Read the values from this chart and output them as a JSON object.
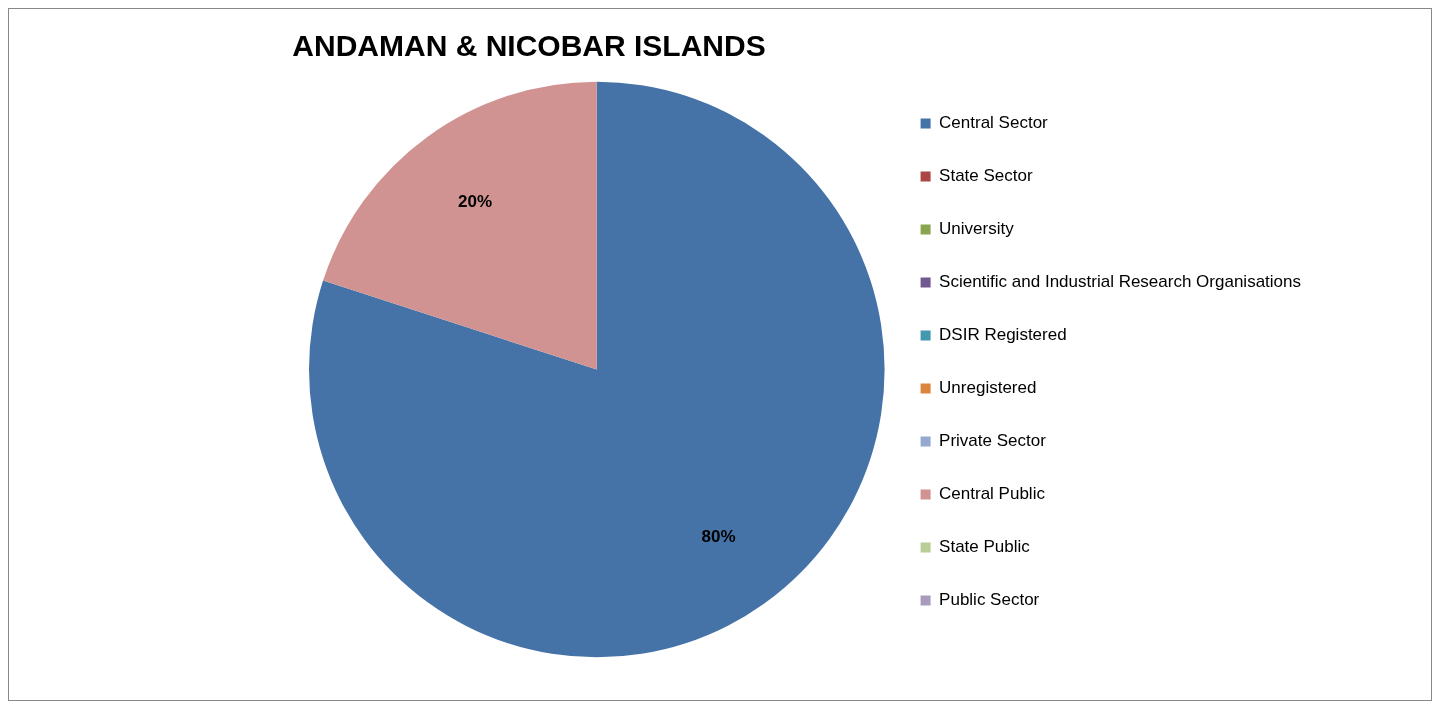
{
  "chart_data": {
    "type": "pie",
    "title": "ANDAMAN & NICOBAR ISLANDS",
    "categories": [
      "Central Sector",
      "State Sector",
      "University",
      "Scientific and Industrial Research Organisations",
      "DSIR Registered",
      "Unregistered",
      "Private Sector",
      "Central Public",
      "State Public",
      "Public Sector"
    ],
    "values": [
      80,
      0,
      0,
      0,
      0,
      0,
      0,
      20,
      0,
      0
    ],
    "colors": [
      "#4573a7",
      "#aa4643",
      "#89a54e",
      "#71588f",
      "#4198af",
      "#db843d",
      "#93a9cf",
      "#d19392",
      "#b9cd96",
      "#a99bbd"
    ],
    "value_labels": [
      "80%",
      null,
      null,
      null,
      null,
      null,
      null,
      "20%",
      null,
      null
    ],
    "legend": "right"
  }
}
